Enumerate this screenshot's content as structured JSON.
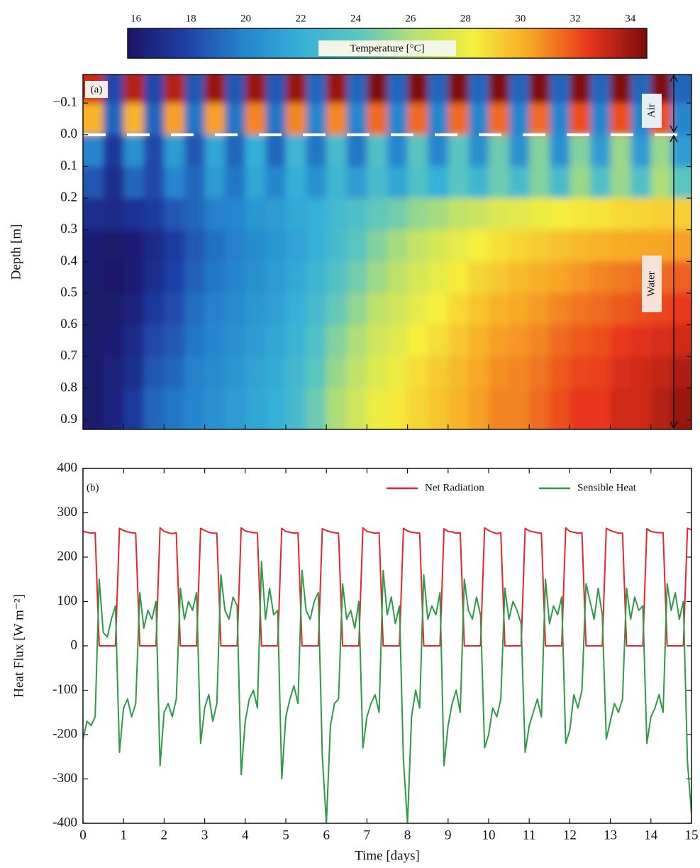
{
  "chart_data": [
    {
      "type": "heatmap",
      "panel_label": "(a)",
      "colorbar_label": "Temperature [°C]",
      "clim": [
        15.7,
        34.6
      ],
      "cticks": [
        16,
        18,
        20,
        22,
        24,
        26,
        28,
        30,
        32,
        34
      ],
      "colormap": [
        "#1b1464",
        "#1f3fa6",
        "#2584cc",
        "#36b0d8",
        "#5cc6bf",
        "#b8e070",
        "#f6ee3c",
        "#f7a526",
        "#e8341c",
        "#7a0c0c"
      ],
      "ylabel": "Depth [m]",
      "region_labels": [
        "Air",
        "Water"
      ],
      "xlim": [
        0,
        15
      ],
      "xticks": [
        0,
        1,
        2,
        3,
        4,
        5,
        6,
        7,
        8,
        9,
        10,
        11,
        12,
        13,
        14,
        15
      ],
      "ylim": [
        -0.19,
        0.93
      ],
      "yticks": [
        {
          "value": -0.1,
          "label": "−0.1"
        },
        {
          "value": 0,
          "label": "0.0"
        },
        {
          "value": 0.1,
          "label": "0.1"
        },
        {
          "value": 0.2,
          "label": "0.2"
        },
        {
          "value": 0.3,
          "label": "0.3"
        },
        {
          "value": 0.4,
          "label": "0.4"
        },
        {
          "value": 0.5,
          "label": "0.5"
        },
        {
          "value": 0.6,
          "label": "0.6"
        },
        {
          "value": 0.7,
          "label": "0.7"
        },
        {
          "value": 0.8,
          "label": "0.8"
        },
        {
          "value": 0.9,
          "label": "0.9"
        }
      ],
      "x": [
        0.25,
        0.75,
        1.25,
        1.75,
        2.25,
        2.75,
        3.25,
        3.75,
        4.25,
        4.75,
        5.25,
        5.75,
        6.25,
        6.75,
        7.25,
        7.75,
        8.25,
        8.75,
        9.25,
        9.75,
        10.25,
        10.75,
        11.25,
        11.75,
        12.25,
        12.75,
        13.25,
        13.75,
        14.25,
        14.75
      ],
      "y": [
        -0.15,
        -0.05,
        0.05,
        0.15,
        0.25,
        0.35,
        0.45,
        0.55,
        0.65,
        0.75,
        0.85
      ],
      "z": [
        [
          33,
          18,
          33.5,
          18,
          33.5,
          18.5,
          34,
          18.5,
          34,
          18.5,
          34,
          19,
          34,
          19,
          34.5,
          19,
          34.5,
          19,
          34.5,
          19,
          34.5,
          19,
          34.5,
          19,
          34.5,
          19,
          34.5,
          19,
          34.5,
          19
        ],
        [
          30,
          19,
          30,
          19,
          30.5,
          19.5,
          30.5,
          19.5,
          31,
          19.5,
          31,
          20,
          31,
          20,
          31.5,
          20,
          31.5,
          20,
          31.5,
          20,
          31.5,
          20,
          31.5,
          20,
          32,
          20,
          32,
          20,
          32,
          20
        ],
        [
          20,
          17.5,
          20.5,
          18,
          21,
          18.5,
          21.5,
          19,
          22,
          19,
          22.5,
          19.5,
          23,
          19.5,
          23.5,
          20,
          24,
          20,
          24,
          20.5,
          24.5,
          20.5,
          25,
          20.5,
          25,
          21,
          25.5,
          21,
          25.5,
          21
        ],
        [
          18.5,
          17,
          19,
          18,
          20,
          19,
          21,
          19.5,
          21.5,
          20,
          22,
          20.5,
          22.5,
          21,
          23,
          21.5,
          23.5,
          22,
          24,
          22.5,
          24.5,
          23,
          25,
          23,
          25.5,
          23.5,
          25.5,
          23.5,
          26,
          24
        ],
        [
          17,
          16.8,
          17.2,
          17.6,
          18.5,
          19,
          19.8,
          20,
          20.8,
          21,
          21.6,
          22,
          22.8,
          23.4,
          24.2,
          24.6,
          25.4,
          25.8,
          26.5,
          26.8,
          27.4,
          27.6,
          28,
          28.2,
          28.5,
          28.6,
          28.9,
          29,
          29.2,
          29.2
        ],
        [
          16.2,
          16,
          16.2,
          16.8,
          17.6,
          18.6,
          19.3,
          19.8,
          20.3,
          20.8,
          21.3,
          22,
          23,
          24,
          25,
          25.8,
          26.6,
          27.2,
          27.8,
          28.3,
          28.7,
          29,
          29.3,
          29.6,
          29.8,
          30,
          30.2,
          30.3,
          30.4,
          30.5
        ],
        [
          16,
          15.9,
          16.2,
          17,
          17.8,
          18.8,
          19.5,
          20,
          20.5,
          21,
          21.6,
          22.5,
          23.6,
          24.6,
          25.6,
          26.4,
          27.2,
          27.8,
          28.4,
          29,
          29.4,
          29.8,
          30.1,
          30.4,
          30.7,
          31,
          31.2,
          31.4,
          31.5,
          31.7
        ],
        [
          16,
          16,
          16.5,
          17.5,
          18.2,
          19.2,
          19.8,
          20.3,
          20.8,
          21.2,
          22,
          23,
          24.3,
          25.3,
          26.4,
          27,
          27.8,
          28.3,
          28.9,
          29.5,
          30,
          30.3,
          30.6,
          31,
          31.3,
          31.5,
          31.8,
          32,
          32.2,
          32.4
        ],
        [
          16,
          16.2,
          16.8,
          18,
          18.6,
          19.5,
          20,
          20.5,
          21,
          21.5,
          22.3,
          23.5,
          25,
          26,
          27,
          27.6,
          28.3,
          28.8,
          29.4,
          30,
          30.5,
          30.7,
          31,
          31.5,
          31.8,
          32,
          32.4,
          32.6,
          32.8,
          33
        ],
        [
          16,
          16.3,
          17,
          18.5,
          19,
          19.8,
          20.3,
          20.8,
          21.3,
          21.8,
          22.8,
          24,
          25.5,
          26.5,
          27.5,
          28,
          28.8,
          29.3,
          29.8,
          30.3,
          30.8,
          31,
          31.3,
          31.8,
          32.2,
          32.3,
          32.8,
          33,
          33.2,
          33.6
        ],
        [
          16,
          16.5,
          17.5,
          19,
          19.5,
          20,
          20.5,
          21,
          21.5,
          22,
          23,
          24.5,
          26,
          27,
          28,
          28.5,
          29,
          29.5,
          30,
          30.5,
          31,
          31,
          31.5,
          32,
          32.5,
          32.5,
          33,
          33,
          33.5,
          34
        ]
      ]
    },
    {
      "type": "line",
      "panel_label": "(b)",
      "xlabel": "Time [days]",
      "ylabel": "Heat Flux [W m⁻²]",
      "xlim": [
        0,
        15
      ],
      "xticks": [
        0,
        1,
        2,
        3,
        4,
        5,
        6,
        7,
        8,
        9,
        10,
        11,
        12,
        13,
        14,
        15
      ],
      "ylim": [
        -400,
        400
      ],
      "yticks": [
        -400,
        -300,
        -200,
        -100,
        0,
        100,
        200,
        300,
        400
      ],
      "legend": "upper right",
      "x": [
        0,
        0.1,
        0.2,
        0.3,
        0.4,
        0.5,
        0.6,
        0.7,
        0.8,
        0.9,
        1,
        1.1,
        1.2,
        1.3,
        1.4,
        1.5,
        1.6,
        1.7,
        1.8,
        1.9,
        2,
        2.1,
        2.2,
        2.3,
        2.4,
        2.5,
        2.6,
        2.7,
        2.8,
        2.9,
        3,
        3.1,
        3.2,
        3.3,
        3.4,
        3.5,
        3.6,
        3.7,
        3.8,
        3.9,
        4,
        4.1,
        4.2,
        4.3,
        4.4,
        4.5,
        4.6,
        4.7,
        4.8,
        4.9,
        5,
        5.1,
        5.2,
        5.3,
        5.4,
        5.5,
        5.6,
        5.7,
        5.8,
        5.9,
        6,
        6.1,
        6.2,
        6.3,
        6.4,
        6.5,
        6.6,
        6.7,
        6.8,
        6.9,
        7,
        7.1,
        7.2,
        7.3,
        7.4,
        7.5,
        7.6,
        7.7,
        7.8,
        7.9,
        8,
        8.1,
        8.2,
        8.3,
        8.4,
        8.5,
        8.6,
        8.7,
        8.8,
        8.9,
        9,
        9.1,
        9.2,
        9.3,
        9.4,
        9.5,
        9.6,
        9.7,
        9.8,
        9.9,
        10,
        10.1,
        10.2,
        10.3,
        10.4,
        10.5,
        10.6,
        10.7,
        10.8,
        10.9,
        11,
        11.1,
        11.2,
        11.3,
        11.4,
        11.5,
        11.6,
        11.7,
        11.8,
        11.9,
        12,
        12.1,
        12.2,
        12.3,
        12.4,
        12.5,
        12.6,
        12.7,
        12.8,
        12.9,
        13,
        13.1,
        13.2,
        13.3,
        13.4,
        13.5,
        13.6,
        13.7,
        13.8,
        13.9,
        14,
        14.1,
        14.2,
        14.3,
        14.4,
        14.5,
        14.6,
        14.7,
        14.8,
        14.9,
        15
      ],
      "series": [
        {
          "name": "Net Radiation",
          "color": "#e8252b",
          "values": [
            258,
            256,
            254,
            255,
            0,
            0,
            0,
            0,
            0,
            265,
            260,
            257,
            255,
            254,
            0,
            0,
            0,
            0,
            0,
            266,
            258,
            255,
            253,
            255,
            0,
            0,
            0,
            0,
            0,
            265,
            260,
            256,
            254,
            254,
            0,
            0,
            0,
            0,
            0,
            266,
            259,
            257,
            255,
            255,
            0,
            0,
            0,
            0,
            0,
            265,
            258,
            256,
            254,
            255,
            0,
            0,
            0,
            0,
            0,
            264,
            260,
            257,
            255,
            254,
            0,
            0,
            0,
            0,
            0,
            266,
            258,
            256,
            254,
            255,
            0,
            0,
            0,
            0,
            0,
            265,
            259,
            256,
            255,
            254,
            0,
            0,
            0,
            0,
            0,
            264,
            258,
            257,
            254,
            255,
            0,
            0,
            0,
            0,
            0,
            266,
            260,
            256,
            253,
            255,
            0,
            0,
            0,
            0,
            0,
            265,
            259,
            257,
            255,
            254,
            0,
            0,
            0,
            0,
            0,
            266,
            258,
            256,
            254,
            255,
            0,
            0,
            0,
            0,
            0,
            265,
            260,
            257,
            254,
            254,
            0,
            0,
            0,
            0,
            0,
            264,
            258,
            256,
            255,
            255,
            0,
            0,
            0,
            0,
            0,
            265,
            262
          ]
        },
        {
          "name": "Sensible Heat",
          "color": "#2e9a48",
          "values": [
            -210,
            -170,
            -180,
            -160,
            150,
            30,
            20,
            60,
            90,
            -240,
            -140,
            -120,
            -160,
            -130,
            120,
            40,
            80,
            60,
            100,
            -270,
            -150,
            -130,
            -160,
            -120,
            130,
            60,
            100,
            80,
            120,
            -220,
            -140,
            -110,
            -170,
            -130,
            160,
            80,
            60,
            110,
            90,
            -290,
            -170,
            -120,
            -100,
            -140,
            190,
            60,
            130,
            70,
            80,
            -300,
            -160,
            -120,
            -90,
            -130,
            170,
            80,
            60,
            100,
            120,
            -250,
            -400,
            -180,
            -130,
            -120,
            140,
            60,
            80,
            40,
            100,
            -230,
            -160,
            -130,
            -110,
            -150,
            170,
            70,
            110,
            50,
            90,
            -260,
            -400,
            -160,
            -100,
            -140,
            160,
            60,
            90,
            70,
            120,
            -270,
            -180,
            -130,
            -100,
            -150,
            150,
            80,
            60,
            110,
            70,
            -230,
            -200,
            -140,
            -160,
            -120,
            130,
            60,
            100,
            80,
            50,
            -240,
            -180,
            -150,
            -120,
            -160,
            150,
            50,
            90,
            70,
            110,
            -220,
            -190,
            -110,
            -140,
            -100,
            140,
            100,
            60,
            130,
            70,
            -210,
            -170,
            -130,
            -150,
            -120,
            130,
            60,
            110,
            80,
            90,
            -220,
            -160,
            -140,
            -110,
            -150,
            140,
            80,
            120,
            60,
            100,
            -260,
            -380
          ]
        }
      ]
    }
  ]
}
